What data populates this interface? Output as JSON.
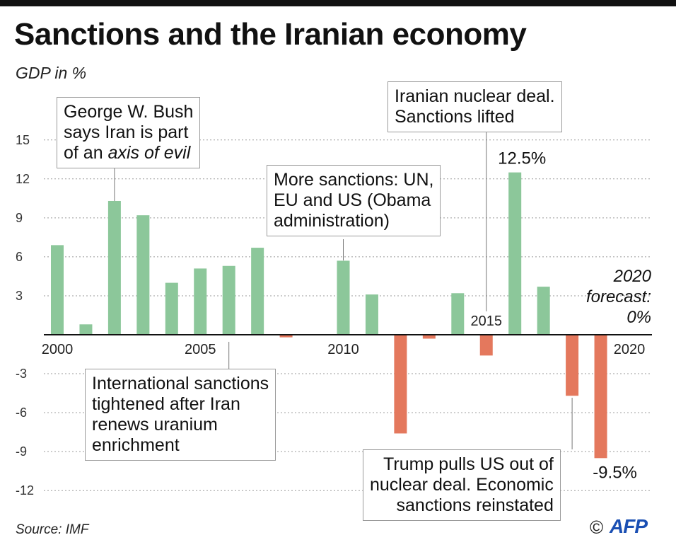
{
  "title": "Sanctions and the Iranian economy",
  "subtitle": "GDP in %",
  "source": "Source: IMF",
  "credit": "©",
  "logo": "AFP",
  "colors": {
    "positive": "#8cc79a",
    "negative": "#e4785d",
    "grid": "#9a9a9a",
    "axis": "#111111"
  },
  "chart_data": {
    "type": "bar",
    "ylabel": "GDP in %",
    "ylim": [
      -12,
      15
    ],
    "yticks": [
      15,
      12,
      9,
      6,
      3,
      -3,
      -6,
      -9,
      -12
    ],
    "xticks": [
      "2000",
      "2005",
      "2010",
      "2015",
      "2020"
    ],
    "categories": [
      "2000",
      "2001",
      "2002",
      "2003",
      "2004",
      "2005",
      "2006",
      "2007",
      "2008",
      "2009",
      "2010",
      "2011",
      "2012",
      "2013",
      "2014",
      "2015",
      "2016",
      "2017",
      "2018",
      "2019",
      "2020"
    ],
    "values": [
      6.9,
      0.8,
      10.3,
      9.2,
      4.0,
      5.1,
      5.3,
      6.7,
      -0.2,
      0,
      5.7,
      3.1,
      -7.6,
      -0.3,
      3.2,
      -1.6,
      12.5,
      3.7,
      -4.7,
      -9.5,
      0
    ],
    "data_labels": [
      {
        "category": "2016",
        "text": "12.5%"
      },
      {
        "category": "2019",
        "text": "-9.5%"
      }
    ],
    "forecast": [
      "2020",
      "forecast:",
      "0%"
    ],
    "grid": true,
    "annotations": [
      {
        "id": "bush",
        "category": "2002",
        "lines": [
          "George W. Bush",
          "says Iran is part",
          "of an ",
          "axis of evil"
        ]
      },
      {
        "id": "sanctions2006",
        "category": "2006",
        "lines": [
          "International sanctions",
          "tightened after Iran",
          "renews uranium",
          "enrichment"
        ]
      },
      {
        "id": "obama",
        "category": "2010",
        "lines": [
          "More sanctions: UN,",
          "EU and US (Obama",
          "administration)"
        ]
      },
      {
        "id": "deal",
        "category": "2015",
        "lines": [
          "Iranian nuclear deal.",
          "Sanctions lifted"
        ]
      },
      {
        "id": "trump",
        "category": "2018",
        "lines": [
          "Trump pulls US out of",
          "nuclear deal. Economic",
          "sanctions reinstated"
        ]
      }
    ]
  }
}
